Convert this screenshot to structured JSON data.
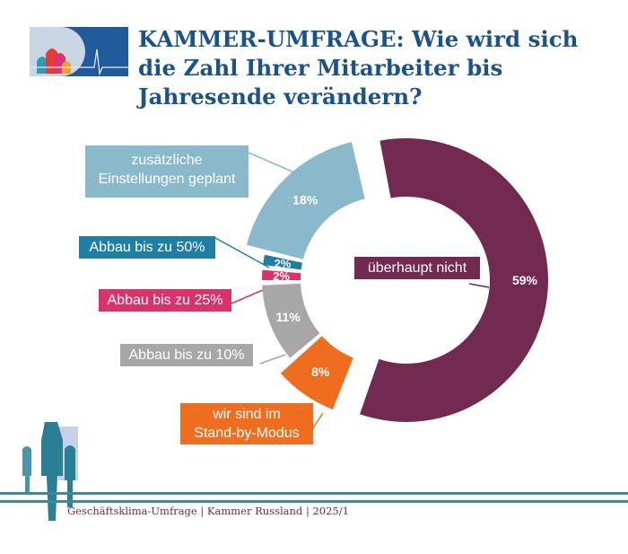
{
  "header": {
    "title": "KAMMER-UMFRAGE: Wie wird sich die Zahl Ihrer Mitarbeiter bis Jahresende verändern?"
  },
  "chart_data": {
    "type": "pie",
    "title": "KAMMER-UMFRAGE: Wie wird sich die Zahl Ihrer Mitarbeiter bis Jahresende verändern?",
    "slices": [
      {
        "label": "überhaupt nicht",
        "value": 59,
        "value_label": "59%",
        "color": "#722a50"
      },
      {
        "label": "wir sind im Stand-by-Modus",
        "value": 8,
        "value_label": "8%",
        "color": "#ee6d1f"
      },
      {
        "label": "Abbau bis zu 10%",
        "value": 11,
        "value_label": "11%",
        "color": "#a7a7a7"
      },
      {
        "label": "Abbau bis zu 25%",
        "value": 2,
        "value_label": "2%",
        "color": "#d9336c"
      },
      {
        "label": "Abbau bis zu 50%",
        "value": 2,
        "value_label": "2%",
        "color": "#1f7fa2"
      },
      {
        "label": "zusätzliche Einstellungen geplant",
        "value": 18,
        "value_label": "18%",
        "color": "#8bb9cc"
      }
    ]
  },
  "labels": {
    "ueberhaupt": "überhaupt nicht",
    "standby_1": "wir sind im",
    "standby_2": "Stand-by-Modus",
    "abbau10": "Abbau bis zu 10%",
    "abbau25": "Abbau bis zu 25%",
    "abbau50": "Abbau bis zu 50%",
    "zusatz_1": "zusätzliche",
    "zusatz_2": "Einstellungen geplant"
  },
  "footer": {
    "text": "Geschäftsklima-Umfrage | Kammer Russland | 2025/1"
  }
}
